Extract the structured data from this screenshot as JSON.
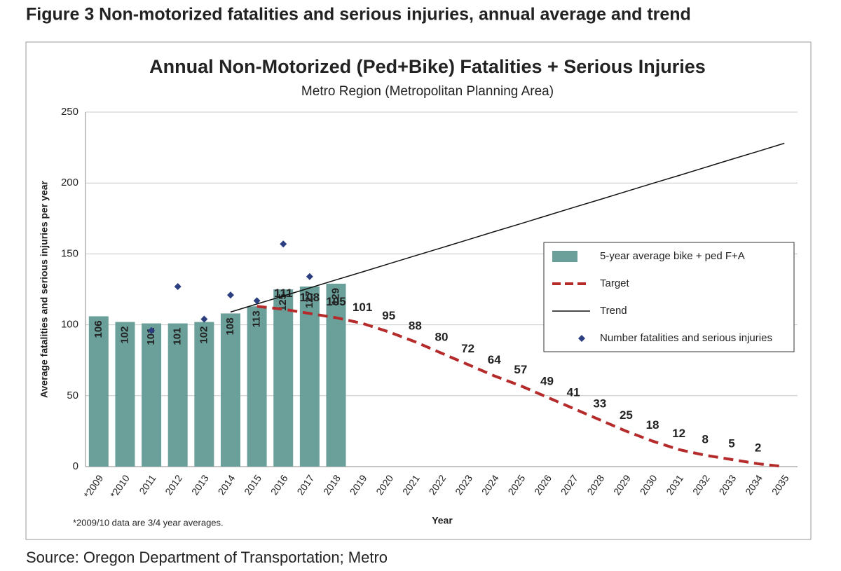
{
  "figure_title": "Figure 3 Non-motorized fatalities and serious injuries, annual average and trend",
  "source": "Source: Oregon Department of Transportation; Metro",
  "chart_data": {
    "type": "bar",
    "title": "Annual Non-Motorized (Ped+Bike) Fatalities + Serious Injuries",
    "subtitle": "Metro Region (Metropolitan Planning Area)",
    "y_label": "Average fatalities and serious injuries  per year",
    "x_label": "Year",
    "note": "*2009/10 data are 3/4 year averages.",
    "categories": [
      "*2009",
      "*2010",
      "2011",
      "2012",
      "2013",
      "2014",
      "2015",
      "2016",
      "2017",
      "2018",
      "2019",
      "2020",
      "2021",
      "2022",
      "2023",
      "2024",
      "2025",
      "2026",
      "2027",
      "2028",
      "2029",
      "2030",
      "2031",
      "2032",
      "2033",
      "2034",
      "2035"
    ],
    "ylim": [
      0,
      250
    ],
    "yticks": [
      0,
      50,
      100,
      150,
      200,
      250
    ],
    "grid": true,
    "legend": "right",
    "series": [
      {
        "name": "5-year average bike + ped F+A",
        "type": "bar",
        "color": "#6a9f9a",
        "values": [
          106,
          102,
          101,
          101,
          102,
          108,
          113,
          125,
          127,
          129,
          null,
          null,
          null,
          null,
          null,
          null,
          null,
          null,
          null,
          null,
          null,
          null,
          null,
          null,
          null,
          null,
          null
        ]
      },
      {
        "name": "Target",
        "type": "line",
        "style": "dashed",
        "color": "#b52b2b",
        "values": [
          null,
          null,
          null,
          null,
          null,
          null,
          113,
          111,
          108,
          105,
          101,
          95,
          88,
          80,
          72,
          64,
          57,
          49,
          41,
          33,
          25,
          18,
          12,
          8,
          5,
          2,
          0
        ],
        "value_labels": [
          null,
          null,
          null,
          null,
          null,
          null,
          null,
          "111",
          "108",
          "105",
          "101",
          "95",
          "88",
          "80",
          "72",
          "64",
          "57",
          "49",
          "41",
          "33",
          "25",
          "18",
          "12",
          "8",
          "5",
          "2",
          null
        ]
      },
      {
        "name": "Trend",
        "type": "line",
        "style": "solid",
        "color": "#111111",
        "values": [
          null,
          null,
          null,
          null,
          null,
          109,
          114.7,
          120.3,
          126,
          131.7,
          137.3,
          143,
          148.7,
          154.3,
          160,
          165.7,
          171.3,
          177,
          182.7,
          188.3,
          194,
          199.7,
          205.3,
          211,
          216.7,
          222.3,
          228
        ]
      },
      {
        "name": "Number fatalities and serious injuries",
        "type": "scatter",
        "color": "#2b3f80",
        "values": [
          null,
          null,
          96,
          127,
          104,
          121,
          117,
          157,
          134,
          null,
          null,
          null,
          null,
          null,
          null,
          null,
          null,
          null,
          null,
          null,
          null,
          null,
          null,
          null,
          null,
          null,
          null
        ]
      }
    ]
  }
}
